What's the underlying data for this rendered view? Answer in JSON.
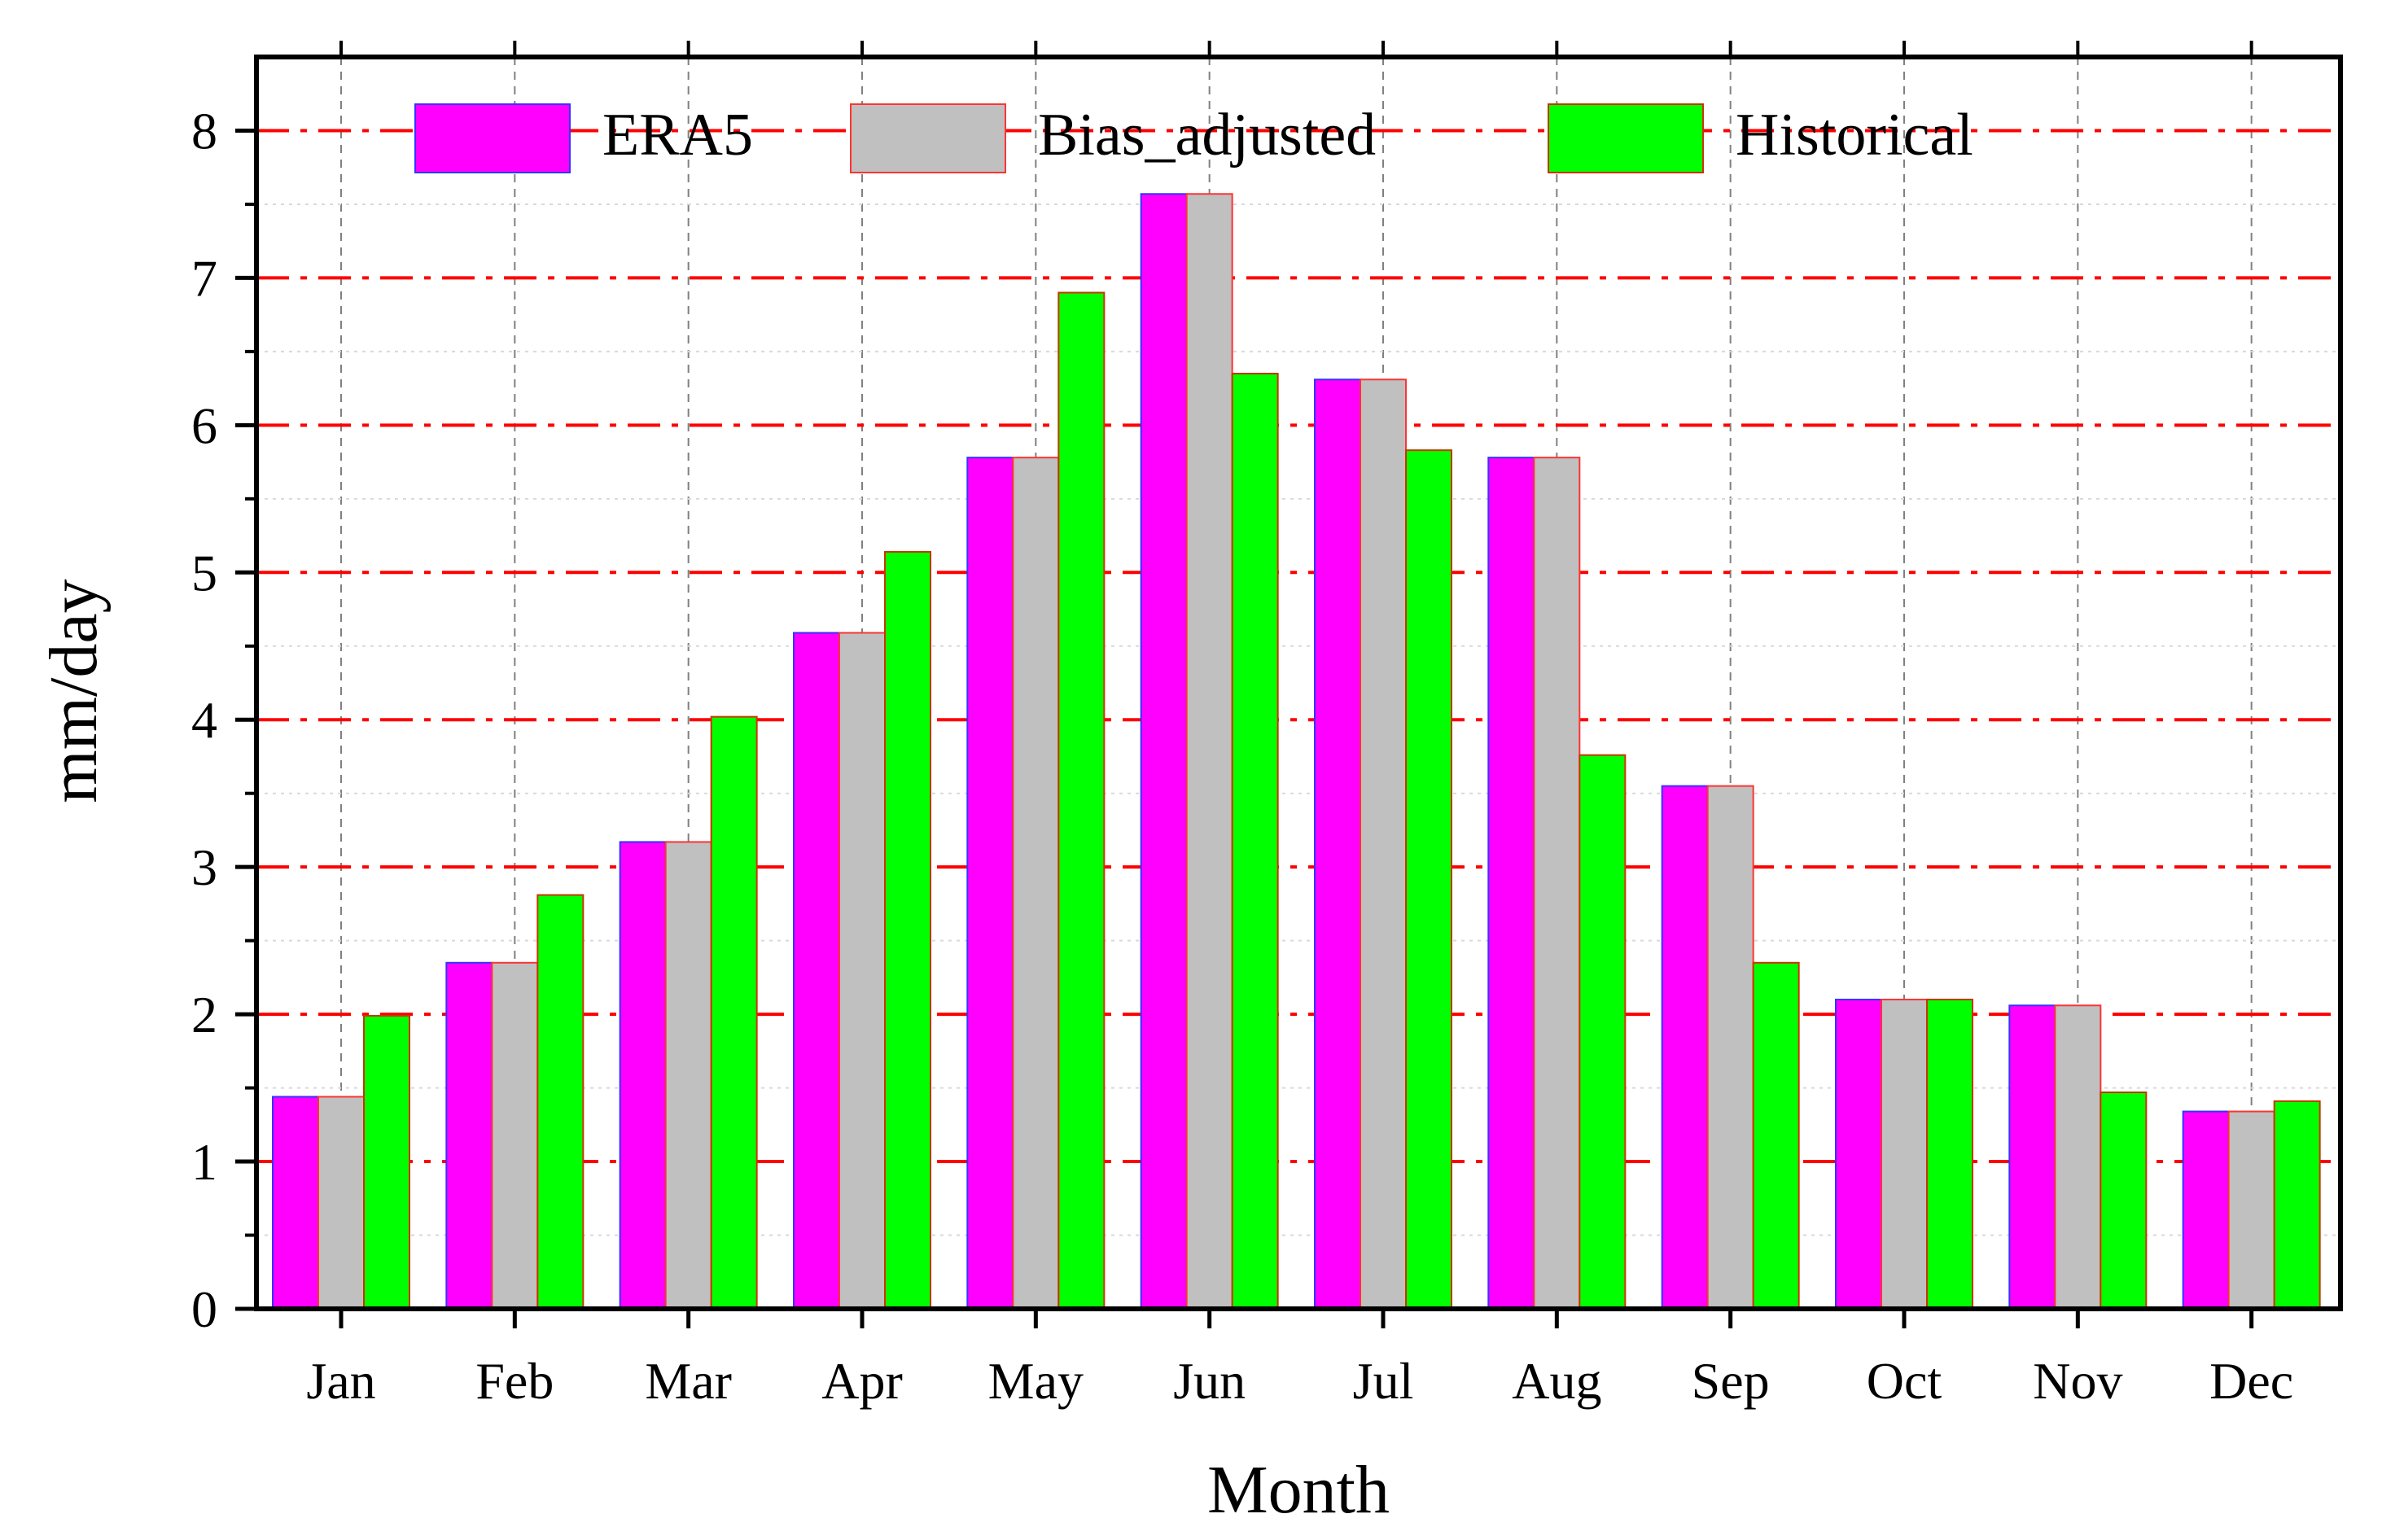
{
  "chart_data": {
    "type": "bar",
    "title": "",
    "xlabel": "Month",
    "ylabel": "mm/day",
    "ylim": [
      0,
      8.5
    ],
    "yticks": [
      "0",
      "1",
      "2",
      "3",
      "4",
      "5",
      "6",
      "7",
      "8"
    ],
    "grid": true,
    "legend_position": "top",
    "categories": [
      "Jan",
      "Feb",
      "Mar",
      "Apr",
      "May",
      "Jun",
      "Jul",
      "Aug",
      "Sep",
      "Oct",
      "Nov",
      "Dec"
    ],
    "series": [
      {
        "name": "ERA5",
        "color": "#ff00ff",
        "edge": "#3333ff",
        "values": [
          1.44,
          2.35,
          3.17,
          4.59,
          5.78,
          7.57,
          6.31,
          5.78,
          3.55,
          2.1,
          2.06,
          1.34
        ]
      },
      {
        "name": "Bias_adjusted",
        "color": "#c0c0c0",
        "edge": "#ff3333",
        "values": [
          1.44,
          2.35,
          3.17,
          4.59,
          5.78,
          7.57,
          6.31,
          5.78,
          3.55,
          2.1,
          2.06,
          1.34
        ]
      },
      {
        "name": "Historical",
        "color": "#00ff00",
        "edge": "#cc3300",
        "values": [
          1.99,
          2.81,
          4.02,
          5.14,
          6.9,
          6.35,
          5.83,
          3.76,
          2.35,
          2.1,
          1.47,
          1.41
        ]
      }
    ],
    "major_grid_color": "#ff0000",
    "minor_grid_color": "#808080"
  }
}
